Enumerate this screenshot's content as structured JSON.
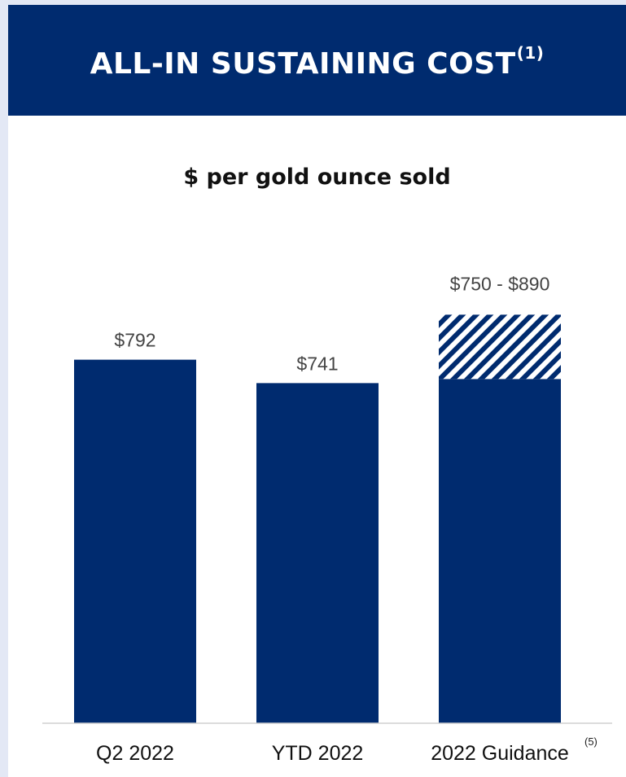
{
  "header": {
    "title": "ALL-IN SUSTAINING COST",
    "title_note": "(1)"
  },
  "chart_data": {
    "type": "bar",
    "title": "$ per gold ounce sold",
    "categories": [
      "Q2 2022",
      "YTD 2022",
      "2022 Guidance"
    ],
    "category_notes": [
      "",
      "",
      "(5)"
    ],
    "values": [
      792,
      741,
      750
    ],
    "range_high": [
      null,
      null,
      890
    ],
    "data_labels": [
      "$792",
      "$741",
      "$750 - $890"
    ],
    "ylim": [
      0,
      930
    ],
    "grid": false,
    "colors": {
      "bar": "#002b6f",
      "hatch": "#002b6f",
      "axis": "#d0d0d0"
    }
  }
}
